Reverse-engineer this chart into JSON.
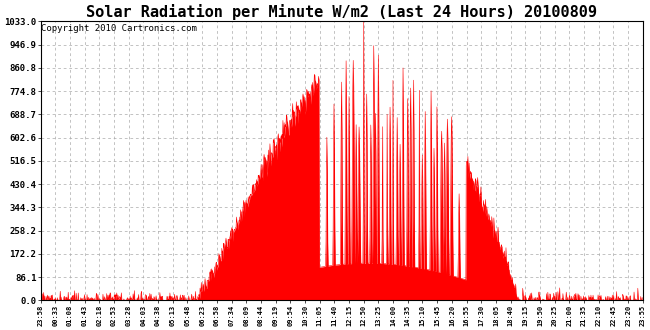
{
  "title": "Solar Radiation per Minute W/m2 (Last 24 Hours) 20100809",
  "copyright": "Copyright 2010 Cartronics.com",
  "yticks": [
    0.0,
    86.1,
    172.2,
    258.2,
    344.3,
    430.4,
    516.5,
    602.6,
    688.7,
    774.8,
    860.8,
    946.9,
    1033.0
  ],
  "ymax": 1033.0,
  "ymin": 0.0,
  "fill_color": "#ff0000",
  "dashed_line_color": "#ff0000",
  "grid_color": "#aaaaaa",
  "bg_color": "#ffffff",
  "title_fontsize": 11,
  "copyright_fontsize": 6.5,
  "xtick_labels": [
    "23:58",
    "00:33",
    "01:08",
    "01:43",
    "02:18",
    "02:53",
    "03:28",
    "04:03",
    "04:38",
    "05:13",
    "05:48",
    "06:23",
    "06:58",
    "07:34",
    "08:09",
    "08:44",
    "09:19",
    "09:54",
    "10:30",
    "11:05",
    "11:40",
    "12:15",
    "12:50",
    "13:25",
    "14:00",
    "14:35",
    "15:10",
    "15:45",
    "16:20",
    "16:55",
    "17:30",
    "18:05",
    "18:40",
    "19:15",
    "19:50",
    "20:25",
    "21:00",
    "21:35",
    "22:10",
    "22:45",
    "23:20",
    "23:55"
  ]
}
